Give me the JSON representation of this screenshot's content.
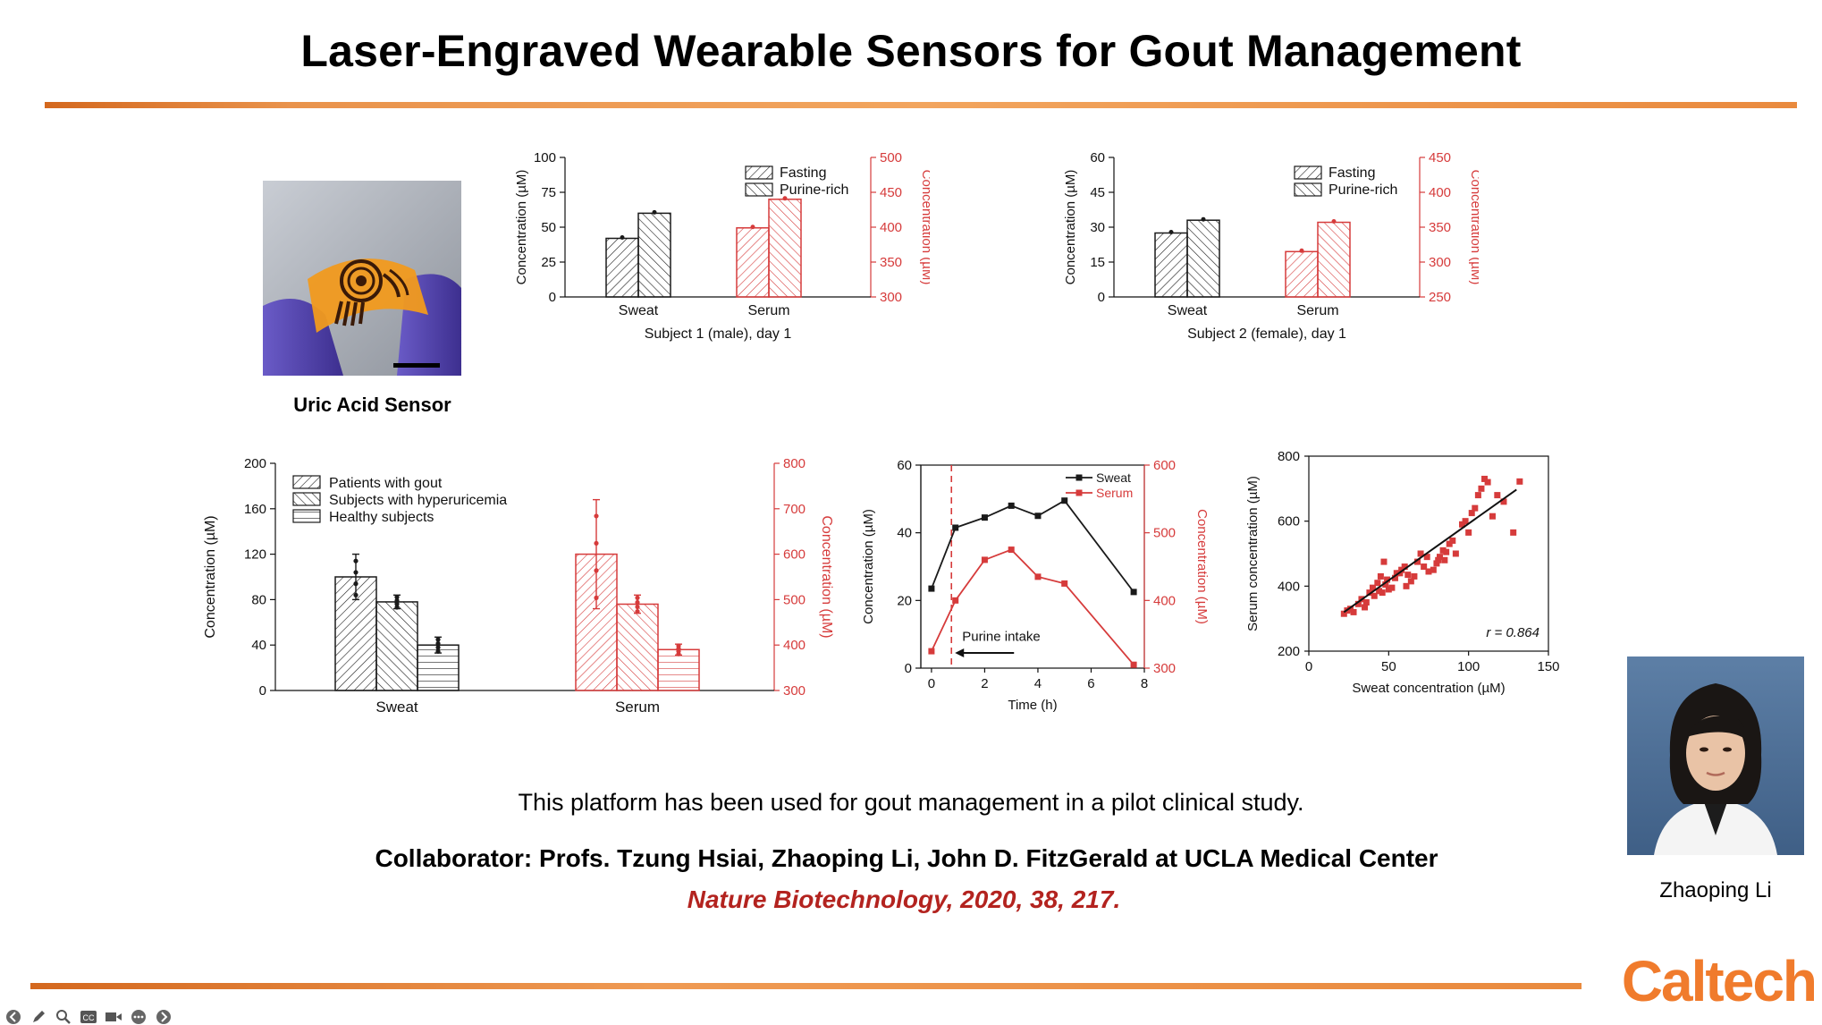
{
  "slide": {
    "title": "Laser-Engraved Wearable Sensors for Gout Management",
    "sensor_caption": "Uric Acid Sensor",
    "summary": "This platform has been used for gout management in a pilot clinical study.",
    "collaborator": "Collaborator: Profs. Tzung Hsiai, Zhaoping Li, John D. FitzGerald at UCLA Medical Center",
    "citation": "Nature Biotechnology, 2020, 38, 217.",
    "portrait_name": "Zhaoping Li",
    "logo": "Caltech"
  },
  "colors": {
    "accent_orange": "#f07b2c",
    "series_black": "#1a1a1a",
    "series_red": "#d63b3b",
    "citation_red": "#b3231f"
  },
  "toolbar": {
    "icons": [
      "back-arrow-icon",
      "pen-icon",
      "magnifier-icon",
      "captions-icon",
      "camera-icon",
      "more-icon",
      "forward-arrow-icon"
    ]
  },
  "chart_data": [
    {
      "type": "bar",
      "xlabel": "Subject 1 (male), day 1",
      "ylabel": "Concentration (µM)",
      "ylabel_right": "Concentration (µM)",
      "categories": [
        "Sweat",
        "Serum"
      ],
      "ylim": [
        0,
        100
      ],
      "yticks": [
        0,
        25,
        50,
        75,
        100
      ],
      "ylim_right": [
        300,
        500
      ],
      "yticks_right": [
        300,
        350,
        400,
        450,
        500
      ],
      "legend": [
        "Fasting",
        "Purine-rich"
      ],
      "legend_placement": "top-right",
      "series": [
        {
          "name": "Fasting",
          "values": [
            42,
            399
          ],
          "axes": [
            "left",
            "right"
          ]
        },
        {
          "name": "Purine-rich",
          "values": [
            60,
            440
          ],
          "axes": [
            "left",
            "right"
          ]
        }
      ]
    },
    {
      "type": "bar",
      "xlabel": "Subject 2 (female), day 1",
      "ylabel": "Concentration (µM)",
      "ylabel_right": "Concentration (µM)",
      "categories": [
        "Sweat",
        "Serum"
      ],
      "ylim": [
        0,
        60
      ],
      "yticks": [
        0,
        15,
        30,
        45,
        60
      ],
      "ylim_right": [
        250,
        450
      ],
      "yticks_right": [
        250,
        300,
        350,
        400,
        450
      ],
      "legend": [
        "Fasting",
        "Purine-rich"
      ],
      "legend_placement": "top-right",
      "series": [
        {
          "name": "Fasting",
          "values": [
            27.5,
            315
          ],
          "axes": [
            "left",
            "right"
          ]
        },
        {
          "name": "Purine-rich",
          "values": [
            33,
            357
          ],
          "axes": [
            "left",
            "right"
          ]
        }
      ]
    },
    {
      "type": "bar",
      "xlabel": "",
      "ylabel": "Concentration (µM)",
      "ylabel_right": "Concentration (µM)",
      "categories": [
        "Sweat",
        "Serum"
      ],
      "ylim": [
        0,
        200
      ],
      "yticks": [
        0,
        40,
        80,
        120,
        160,
        200
      ],
      "ylim_right": [
        300,
        800
      ],
      "yticks_right": [
        300,
        400,
        500,
        600,
        700,
        800
      ],
      "legend": [
        "Patients with gout",
        "Subjects with hyperuricemia",
        "Healthy subjects"
      ],
      "legend_placement": "top-left",
      "series": [
        {
          "name": "Patients with gout",
          "values": [
            100,
            600
          ],
          "errors": [
            20,
            120
          ]
        },
        {
          "name": "Subjects with hyperuricemia",
          "values": [
            78,
            490
          ],
          "errors": [
            6,
            20
          ]
        },
        {
          "name": "Healthy subjects",
          "values": [
            40,
            390
          ],
          "errors": [
            7,
            12
          ]
        }
      ]
    },
    {
      "type": "line",
      "xlabel": "Time (h)",
      "ylabel": "Concentration (µM)",
      "ylabel_right": "Concentration (µM)",
      "xlim": [
        -0.4,
        8
      ],
      "xticks": [
        0,
        2,
        4,
        6,
        8
      ],
      "ylim": [
        0,
        60
      ],
      "yticks": [
        0,
        20,
        40,
        60
      ],
      "ylim_right": [
        300,
        600
      ],
      "yticks_right": [
        300,
        400,
        500,
        600
      ],
      "annotation": "Purine intake",
      "intake_time": 0.75,
      "legend_placement": "top-right",
      "series": [
        {
          "name": "Sweat",
          "axis": "left",
          "x": [
            0,
            0.9,
            2,
            3,
            4,
            5,
            7.6
          ],
          "y": [
            23.5,
            41.5,
            44.5,
            48,
            45,
            49.5,
            22.5
          ]
        },
        {
          "name": "Serum",
          "axis": "right",
          "x": [
            0,
            0.9,
            2,
            3,
            4,
            5,
            7.6
          ],
          "y": [
            325,
            400,
            460,
            475,
            435,
            425,
            305
          ]
        }
      ]
    },
    {
      "type": "scatter",
      "xlabel": "Sweat concentration (µM)",
      "ylabel": "Serum concentration (µM)",
      "xlim": [
        0,
        150
      ],
      "xticks": [
        0,
        50,
        100,
        150
      ],
      "ylim": [
        200,
        800
      ],
      "yticks": [
        200,
        400,
        600,
        800
      ],
      "annotation": "r = 0.864",
      "fit_line": {
        "x": [
          22,
          130
        ],
        "y": [
          320,
          697
        ]
      },
      "points": [
        [
          22,
          315
        ],
        [
          24,
          325
        ],
        [
          26,
          330
        ],
        [
          28,
          320
        ],
        [
          31,
          345
        ],
        [
          33,
          360
        ],
        [
          35,
          335
        ],
        [
          36,
          350
        ],
        [
          38,
          380
        ],
        [
          40,
          395
        ],
        [
          41,
          370
        ],
        [
          43,
          410
        ],
        [
          44,
          385
        ],
        [
          45,
          430
        ],
        [
          46,
          380
        ],
        [
          47,
          475
        ],
        [
          48,
          405
        ],
        [
          49,
          420
        ],
        [
          50,
          390
        ],
        [
          52,
          395
        ],
        [
          54,
          425
        ],
        [
          55,
          440
        ],
        [
          57,
          440
        ],
        [
          58,
          450
        ],
        [
          60,
          460
        ],
        [
          61,
          400
        ],
        [
          62,
          435
        ],
        [
          64,
          415
        ],
        [
          66,
          430
        ],
        [
          68,
          475
        ],
        [
          70,
          500
        ],
        [
          72,
          460
        ],
        [
          74,
          490
        ],
        [
          75,
          445
        ],
        [
          78,
          450
        ],
        [
          80,
          470
        ],
        [
          81,
          480
        ],
        [
          82,
          490
        ],
        [
          84,
          510
        ],
        [
          85,
          480
        ],
        [
          86,
          505
        ],
        [
          88,
          530
        ],
        [
          90,
          540
        ],
        [
          92,
          500
        ],
        [
          96,
          590
        ],
        [
          98,
          600
        ],
        [
          100,
          565
        ],
        [
          102,
          625
        ],
        [
          104,
          640
        ],
        [
          106,
          680
        ],
        [
          108,
          700
        ],
        [
          110,
          730
        ],
        [
          112,
          720
        ],
        [
          115,
          615
        ],
        [
          118,
          680
        ],
        [
          122,
          660
        ],
        [
          128,
          565
        ],
        [
          132,
          722
        ]
      ]
    }
  ]
}
